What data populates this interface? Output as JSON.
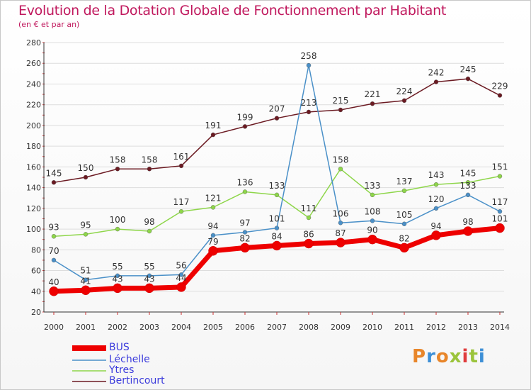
{
  "header": {
    "title": "Evolution de la Dotation Globale de Fonctionnement par Habitant",
    "subtitle": "(en € et par an)"
  },
  "logo": {
    "text": "Proxiti",
    "colors": [
      "#e8862a",
      "#3d8fd6",
      "#e8862a",
      "#9bc43b",
      "#e03c3c",
      "#9bc43b",
      "#3d8fd6"
    ]
  },
  "chart_data": {
    "type": "line",
    "title": "Evolution de la Dotation Globale de Fonctionnement par Habitant",
    "subtitle": "(en € et par an)",
    "x": [
      "2000",
      "2001",
      "2002",
      "2003",
      "2004",
      "2005",
      "2006",
      "2007",
      "2008",
      "2009",
      "2010",
      "2011",
      "2012",
      "2013",
      "2014"
    ],
    "ylim": [
      20,
      280
    ],
    "yticks": [
      20,
      40,
      60,
      80,
      100,
      120,
      140,
      160,
      180,
      200,
      220,
      240,
      260,
      280
    ],
    "grid": "horizontal",
    "legend_position": "bottom-left",
    "series": [
      {
        "name": "BUS",
        "color": "#ee0000",
        "values": [
          40,
          41,
          43,
          43,
          44,
          79,
          82,
          84,
          86,
          87,
          90,
          82,
          94,
          98,
          101
        ]
      },
      {
        "name": "Léchelle",
        "color": "#4a90c8",
        "values": [
          70,
          51,
          55,
          55,
          56,
          94,
          97,
          101,
          258,
          106,
          108,
          105,
          120,
          133,
          117
        ]
      },
      {
        "name": "Ytres",
        "color": "#8ed64a",
        "values": [
          93,
          95,
          100,
          98,
          117,
          121,
          136,
          133,
          111,
          158,
          133,
          137,
          143,
          145,
          151
        ]
      },
      {
        "name": "Bertincourt",
        "color": "#6b1a22",
        "values": [
          145,
          150,
          158,
          158,
          161,
          191,
          199,
          207,
          213,
          215,
          221,
          224,
          242,
          245,
          229
        ]
      }
    ]
  }
}
